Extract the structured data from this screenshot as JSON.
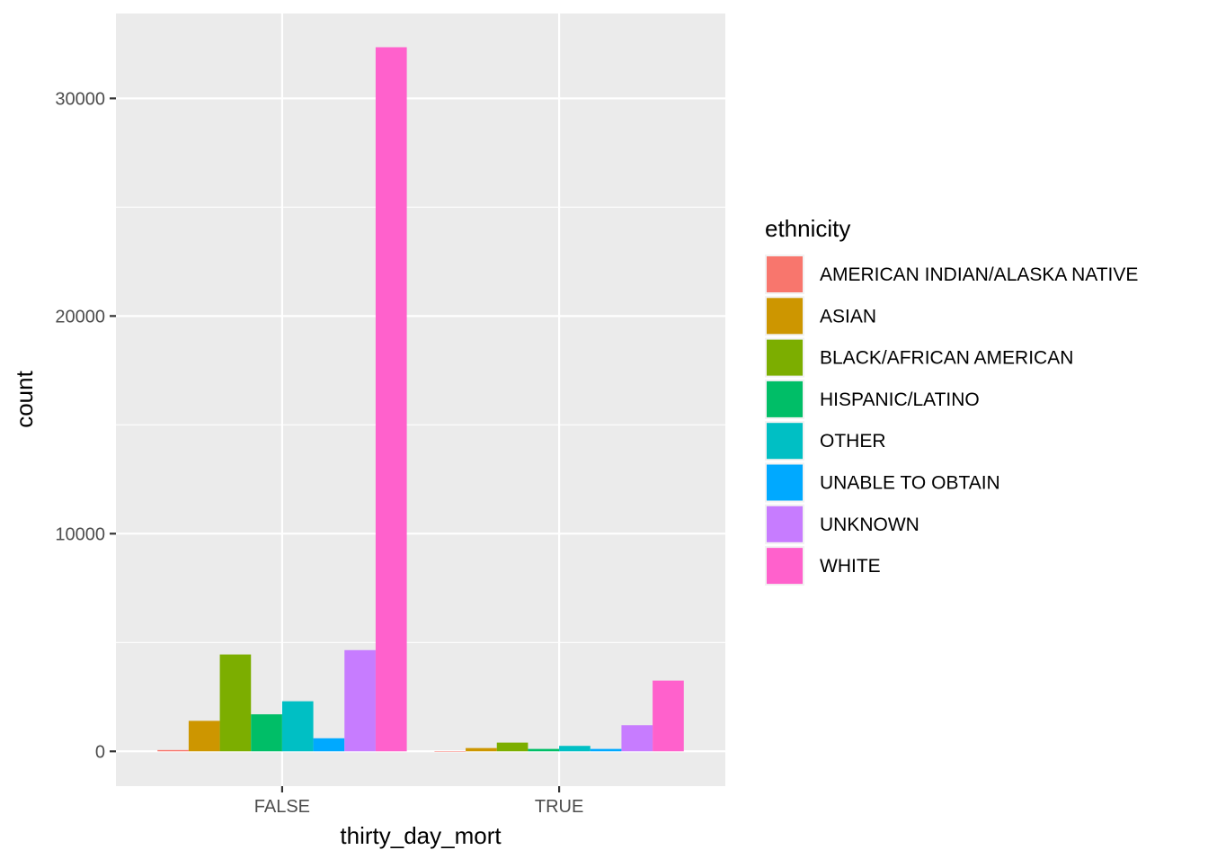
{
  "chart_data": {
    "type": "bar",
    "title": "",
    "xlabel": "thirty_day_mort",
    "ylabel": "count",
    "categories": [
      "FALSE",
      "TRUE"
    ],
    "ylim": [
      -1600,
      33900
    ],
    "yticks": [
      0,
      10000,
      20000,
      30000
    ],
    "grid": true,
    "legend": {
      "title": "ethnicity",
      "placement": "right"
    },
    "series": [
      {
        "name": "AMERICAN INDIAN/ALASKA NATIVE",
        "color": "#F8766D",
        "values": [
          60,
          10
        ]
      },
      {
        "name": "ASIAN",
        "color": "#CD9600",
        "values": [
          1400,
          150
        ]
      },
      {
        "name": "BLACK/AFRICAN AMERICAN",
        "color": "#7CAE00",
        "values": [
          4450,
          400
        ]
      },
      {
        "name": "HISPANIC/LATINO",
        "color": "#00BE67",
        "values": [
          1700,
          110
        ]
      },
      {
        "name": "OTHER",
        "color": "#00BFC4",
        "values": [
          2300,
          250
        ]
      },
      {
        "name": "UNABLE TO OBTAIN",
        "color": "#00A9FF",
        "values": [
          600,
          110
        ]
      },
      {
        "name": "UNKNOWN",
        "color": "#C77CFF",
        "values": [
          4650,
          1200
        ]
      },
      {
        "name": "WHITE",
        "color": "#FF61CC",
        "values": [
          32350,
          3250
        ]
      }
    ]
  }
}
